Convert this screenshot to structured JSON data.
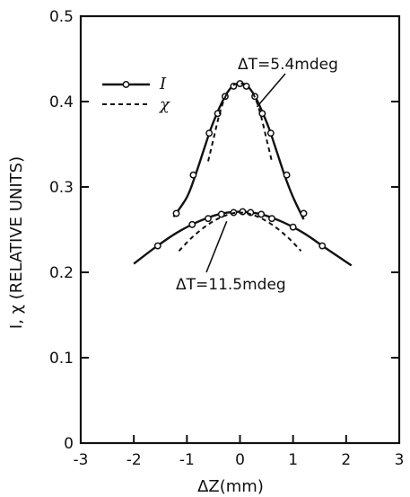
{
  "chart_data": {
    "type": "line",
    "xlabel": "ΔZ(mm)",
    "ylabel": "I, χ (RELATIVE UNITS)",
    "xlim": [
      -3,
      3
    ],
    "ylim": [
      0,
      0.5
    ],
    "x_ticks": [
      "-3",
      "-1",
      "0",
      "1",
      "2",
      "3",
      "-2"
    ],
    "x_tick_values": [
      -3,
      -1,
      0,
      1,
      2,
      3,
      -2
    ],
    "y_ticks": [
      "0",
      "0.1",
      "0.2",
      "0.3",
      "0.4",
      "0.5"
    ],
    "y_tick_values": [
      0,
      0.1,
      0.2,
      0.3,
      0.4,
      0.5
    ],
    "grid": false,
    "legend_position": "top-left",
    "series": [
      {
        "name": "I",
        "style": "solid-markers",
        "group": "5.4",
        "x": [
          -1.25,
          -1.0,
          -0.85,
          -0.7,
          -0.55,
          -0.42,
          -0.3,
          -0.2,
          -0.1,
          0.0,
          0.1,
          0.2,
          0.3,
          0.42,
          0.55,
          0.7,
          0.85,
          1.0,
          1.2
        ],
        "y": [
          0.265,
          0.288,
          0.312,
          0.34,
          0.368,
          0.388,
          0.404,
          0.414,
          0.42,
          0.421,
          0.42,
          0.414,
          0.404,
          0.388,
          0.368,
          0.34,
          0.312,
          0.288,
          0.262
        ],
        "marker_x": [
          -1.2,
          -0.88,
          -0.58,
          -0.42,
          -0.28,
          -0.12,
          0.0,
          0.12,
          0.28,
          0.42,
          0.58,
          0.88,
          1.2
        ],
        "marker_y": [
          0.269,
          0.314,
          0.363,
          0.386,
          0.406,
          0.418,
          0.421,
          0.418,
          0.406,
          0.386,
          0.363,
          0.314,
          0.269
        ]
      },
      {
        "name": "χ",
        "style": "dashed",
        "group": "5.4",
        "x": [
          -0.6,
          -0.5,
          -0.4,
          -0.3,
          -0.2,
          -0.1,
          0.0,
          0.1,
          0.2,
          0.3,
          0.4,
          0.5,
          0.6
        ],
        "y": [
          0.33,
          0.356,
          0.382,
          0.402,
          0.414,
          0.42,
          0.421,
          0.42,
          0.414,
          0.402,
          0.382,
          0.356,
          0.33
        ]
      },
      {
        "name": "I",
        "style": "solid-markers",
        "group": "11.5",
        "x": [
          -2.0,
          -1.6,
          -1.2,
          -0.8,
          -0.4,
          0.0,
          0.4,
          0.8,
          1.2,
          1.6,
          2.1
        ],
        "y": [
          0.21,
          0.229,
          0.246,
          0.259,
          0.268,
          0.271,
          0.268,
          0.259,
          0.246,
          0.229,
          0.208
        ],
        "marker_x": [
          -1.55,
          -0.9,
          -0.6,
          -0.35,
          -0.12,
          0.05,
          0.2,
          0.4,
          0.6,
          1.0,
          1.55
        ],
        "marker_y": [
          0.231,
          0.256,
          0.263,
          0.268,
          0.27,
          0.271,
          0.27,
          0.268,
          0.263,
          0.253,
          0.231
        ]
      },
      {
        "name": "χ",
        "style": "dashed",
        "group": "11.5",
        "x": [
          -1.15,
          -0.9,
          -0.6,
          -0.3,
          0.0,
          0.3,
          0.6,
          0.9,
          1.15
        ],
        "y": [
          0.225,
          0.241,
          0.256,
          0.266,
          0.27,
          0.266,
          0.256,
          0.241,
          0.225
        ]
      }
    ],
    "annotations": [
      {
        "text": "ΔT=5.4mdeg"
      },
      {
        "text": "ΔT=11.5mdeg"
      }
    ],
    "legend": [
      {
        "label": "I",
        "style": "solid-markers"
      },
      {
        "label": "χ",
        "style": "dashed"
      }
    ]
  }
}
